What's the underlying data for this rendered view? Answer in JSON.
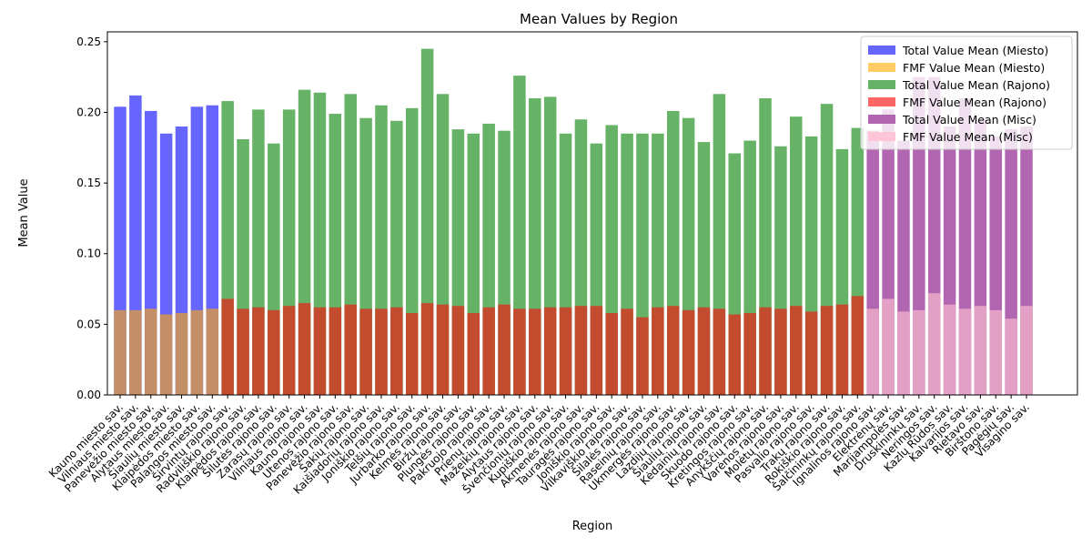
{
  "chart_data": {
    "type": "bar",
    "title": "Mean Values by Region",
    "xlabel": "Region",
    "ylabel": "Mean Value",
    "ylim": [
      0,
      0.257
    ],
    "yticks": [
      "0.00",
      "0.05",
      "0.10",
      "0.15",
      "0.20",
      "0.25"
    ],
    "legend_position": "top-right",
    "grid": false,
    "categories": [
      "Kauno miesto sav.",
      "Vilniaus miesto sav.",
      "Panevėžio miesto sav.",
      "Alytaus miesto sav.",
      "Šiaulių miesto sav.",
      "Klaipėdos miesto sav.",
      "Palangos miesto sav.",
      "Širvintų rajono sav.",
      "Radviliškio rajono sav.",
      "Klaipėdos rajono sav.",
      "Šilutės rajono sav.",
      "Zarasų rajono sav.",
      "Vilniaus rajono sav.",
      "Kauno rajono sav.",
      "Utenos rajono sav.",
      "Panevėžio rajono sav.",
      "Šakių rajono sav.",
      "Kaišiadorių rajono sav.",
      "Joniškio rajono sav.",
      "Telšių rajono sav.",
      "Jurbarko rajono sav.",
      "Kelmės rajono sav.",
      "Biržų rajono sav.",
      "Plungės rajono sav.",
      "Pakruojo rajono sav.",
      "Prienų rajono sav.",
      "Mažeikių rajono sav.",
      "Alytaus rajono sav.",
      "Švenčionių rajono sav.",
      "Kupiškio rajono sav.",
      "Akmenės rajono sav.",
      "Tauragės rajono sav.",
      "Joniškio rajono sav.",
      "Vilkaviškio rajono sav.",
      "Šilalės rajono sav.",
      "Raseinių rajono sav.",
      "Ukmergės rajono sav.",
      "Lazdijų rajono sav.",
      "Šiaulių rajono sav.",
      "Kėdainių rajono sav.",
      "Skuodo rajono sav.",
      "Kretingos rajono sav.",
      "Anykščių rajono sav.",
      "Varėnos rajono sav.",
      "Molėtų rajono sav.",
      "Pasvalio rajono sav.",
      "Trakų rajono sav.",
      "Rokiškio rajono sav.",
      "Šalčininkų rajono sav.",
      "Ignalinos rajono sav.",
      "Elektrėnų sav.",
      "Marijampolės sav.",
      "Druskininkų sav.",
      "Neringos sav.",
      "Kazlų Rūdos sav.",
      "Kalvarijos sav.",
      "Rietavo sav.",
      "Birštono sav.",
      "Pagėgių sav.",
      "Visagino sav."
    ],
    "groups": [
      "Miesto",
      "Miesto",
      "Miesto",
      "Miesto",
      "Miesto",
      "Miesto",
      "Miesto",
      "Rajono",
      "Rajono",
      "Rajono",
      "Rajono",
      "Rajono",
      "Rajono",
      "Rajono",
      "Rajono",
      "Rajono",
      "Rajono",
      "Rajono",
      "Rajono",
      "Rajono",
      "Rajono",
      "Rajono",
      "Rajono",
      "Rajono",
      "Rajono",
      "Rajono",
      "Rajono",
      "Rajono",
      "Rajono",
      "Rajono",
      "Rajono",
      "Rajono",
      "Rajono",
      "Rajono",
      "Rajono",
      "Rajono",
      "Rajono",
      "Rajono",
      "Rajono",
      "Rajono",
      "Rajono",
      "Rajono",
      "Rajono",
      "Rajono",
      "Rajono",
      "Rajono",
      "Rajono",
      "Rajono",
      "Rajono",
      "Misc",
      "Misc",
      "Misc",
      "Misc",
      "Misc",
      "Misc",
      "Misc",
      "Misc",
      "Misc",
      "Misc",
      "Misc"
    ],
    "series": [
      {
        "name": "Total Value Mean",
        "values": [
          0.204,
          0.212,
          0.201,
          0.185,
          0.19,
          0.204,
          0.205,
          0.208,
          0.181,
          0.202,
          0.178,
          0.202,
          0.216,
          0.214,
          0.199,
          0.213,
          0.196,
          0.205,
          0.194,
          0.203,
          0.245,
          0.213,
          0.188,
          0.185,
          0.192,
          0.187,
          0.226,
          0.21,
          0.211,
          0.185,
          0.195,
          0.178,
          0.191,
          0.185,
          0.185,
          0.185,
          0.201,
          0.196,
          0.179,
          0.213,
          0.171,
          0.18,
          0.21,
          0.176,
          0.197,
          0.183,
          0.206,
          0.174,
          0.189,
          0.187,
          0.202,
          0.18,
          0.225,
          0.225,
          0.19,
          0.21,
          0.195,
          0.183,
          0.188,
          0.19
        ]
      },
      {
        "name": "FMF Value Mean",
        "values": [
          0.06,
          0.06,
          0.061,
          0.057,
          0.058,
          0.06,
          0.061,
          0.068,
          0.061,
          0.062,
          0.06,
          0.063,
          0.065,
          0.062,
          0.062,
          0.064,
          0.061,
          0.061,
          0.062,
          0.058,
          0.065,
          0.064,
          0.063,
          0.058,
          0.062,
          0.064,
          0.061,
          0.061,
          0.062,
          0.062,
          0.063,
          0.063,
          0.058,
          0.061,
          0.055,
          0.062,
          0.063,
          0.06,
          0.062,
          0.061,
          0.057,
          0.058,
          0.062,
          0.061,
          0.063,
          0.059,
          0.063,
          0.064,
          0.07,
          0.061,
          0.068,
          0.059,
          0.06,
          0.072,
          0.064,
          0.061,
          0.063,
          0.06,
          0.054,
          0.063
        ]
      }
    ],
    "legend": [
      {
        "label": "Total Value Mean (Miesto)",
        "color": "#6666ff"
      },
      {
        "label": "FMF Value Mean (Miesto)",
        "color": "#ffcc66"
      },
      {
        "label": "Total Value Mean (Rajono)",
        "color": "#66b266"
      },
      {
        "label": "FMF Value Mean (Rajono)",
        "color": "#ff6666"
      },
      {
        "label": "Total Value Mean (Misc)",
        "color": "#b266b2"
      },
      {
        "label": "FMF Value Mean (Misc)",
        "color": "#ffc4d6"
      }
    ],
    "colors": {
      "Miesto": {
        "total": "#6666ff",
        "fmf": "#c48f66"
      },
      "Rajono": {
        "total": "#66b266",
        "fmf": "#c44c2e"
      },
      "Misc": {
        "total": "#b266b2",
        "fmf": "#e2a0c4"
      }
    }
  }
}
